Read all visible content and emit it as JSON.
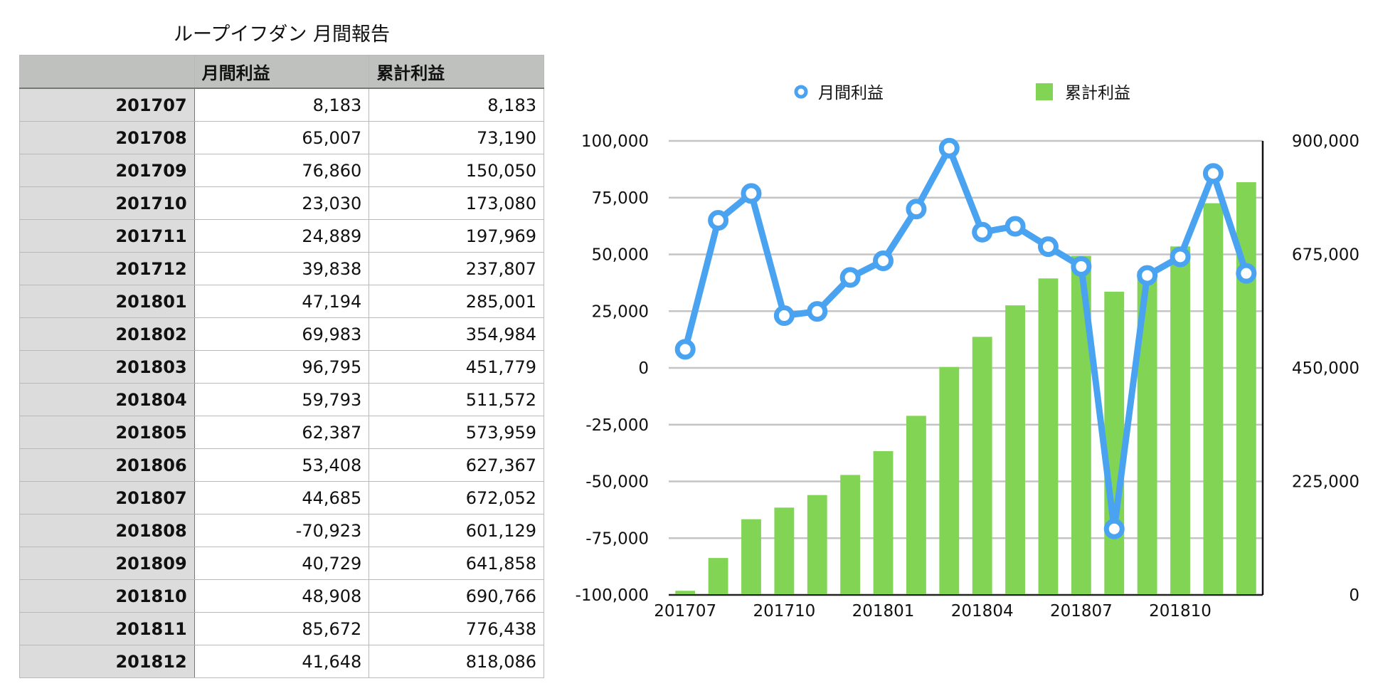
{
  "title": "ループイフダン 月間報告",
  "table": {
    "headers": [
      "",
      "月間利益",
      "累計利益"
    ],
    "rows": [
      [
        "201707",
        "8,183",
        "8,183"
      ],
      [
        "201708",
        "65,007",
        "73,190"
      ],
      [
        "201709",
        "76,860",
        "150,050"
      ],
      [
        "201710",
        "23,030",
        "173,080"
      ],
      [
        "201711",
        "24,889",
        "197,969"
      ],
      [
        "201712",
        "39,838",
        "237,807"
      ],
      [
        "201801",
        "47,194",
        "285,001"
      ],
      [
        "201802",
        "69,983",
        "354,984"
      ],
      [
        "201803",
        "96,795",
        "451,779"
      ],
      [
        "201804",
        "59,793",
        "511,572"
      ],
      [
        "201805",
        "62,387",
        "573,959"
      ],
      [
        "201806",
        "53,408",
        "627,367"
      ],
      [
        "201807",
        "44,685",
        "672,052"
      ],
      [
        "201808",
        "-70,923",
        "601,129"
      ],
      [
        "201809",
        "40,729",
        "641,858"
      ],
      [
        "201810",
        "48,908",
        "690,766"
      ],
      [
        "201811",
        "85,672",
        "776,438"
      ],
      [
        "201812",
        "41,648",
        "818,086"
      ]
    ]
  },
  "chart_data": {
    "type": "bar",
    "categories": [
      "201707",
      "201708",
      "201709",
      "201710",
      "201711",
      "201712",
      "201801",
      "201802",
      "201803",
      "201804",
      "201805",
      "201806",
      "201807",
      "201808",
      "201809",
      "201810",
      "201811",
      "201812"
    ],
    "x_tick_labels": [
      "201707",
      "201710",
      "201801",
      "201804",
      "201807",
      "201810"
    ],
    "series": [
      {
        "name": "月間利益",
        "type": "line",
        "axis": "left",
        "color": "#4aa3f0",
        "values": [
          8183,
          65007,
          76860,
          23030,
          24889,
          39838,
          47194,
          69983,
          96795,
          59793,
          62387,
          53408,
          44685,
          -70923,
          40729,
          48908,
          85672,
          41648
        ]
      },
      {
        "name": "累計利益",
        "type": "bar",
        "axis": "right",
        "color": "#82d454",
        "values": [
          8183,
          73190,
          150050,
          173080,
          197969,
          237807,
          285001,
          354984,
          451779,
          511572,
          573959,
          627367,
          672052,
          601129,
          641858,
          690766,
          776438,
          818086
        ]
      }
    ],
    "left_axis": {
      "range": [
        -100000,
        100000
      ],
      "ticks": [
        "100,000",
        "75,000",
        "50,000",
        "25,000",
        "0",
        "-25,000",
        "-50,000",
        "-75,000",
        "-100,000"
      ]
    },
    "right_axis": {
      "range": [
        0,
        900000
      ],
      "ticks": [
        "900,000",
        "675,000",
        "450,000",
        "225,000",
        "0"
      ]
    },
    "legend": "top-center",
    "grid": true
  }
}
